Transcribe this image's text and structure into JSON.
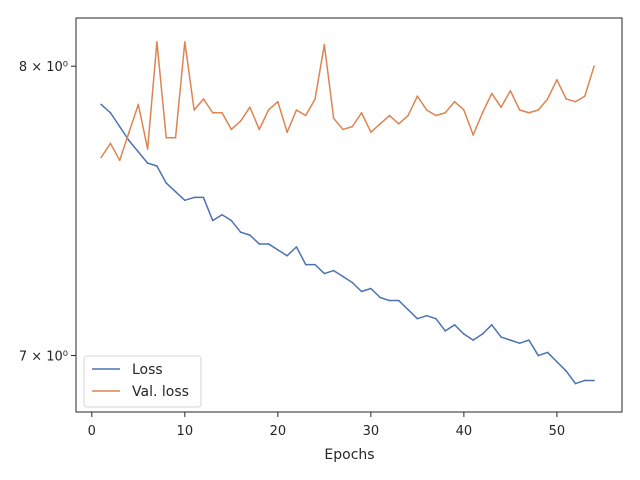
{
  "chart_data": {
    "type": "line",
    "title": "",
    "xlabel": "Epochs",
    "ylabel": "",
    "yscale": "log",
    "xlim": [
      -1.7,
      57
    ],
    "ylim": [
      6.82,
      8.18
    ],
    "xticks": [
      0,
      10,
      20,
      30,
      40,
      50
    ],
    "yticks": [
      {
        "value": 7,
        "label": "7 × 10⁰"
      },
      {
        "value": 8,
        "label": "8 × 10⁰"
      }
    ],
    "grid": false,
    "legend_position": "lower-left",
    "x": [
      1,
      2,
      3,
      4,
      5,
      6,
      7,
      8,
      9,
      10,
      11,
      12,
      13,
      14,
      15,
      16,
      17,
      18,
      19,
      20,
      21,
      22,
      23,
      24,
      25,
      26,
      27,
      28,
      29,
      30,
      31,
      32,
      33,
      34,
      35,
      36,
      37,
      38,
      39,
      40,
      41,
      42,
      43,
      44,
      45,
      46,
      47,
      48,
      49,
      50,
      51,
      52,
      53,
      54
    ],
    "series": [
      {
        "name": "Loss",
        "color": "#4c72b0",
        "values": [
          7.86,
          7.83,
          7.78,
          7.73,
          7.69,
          7.65,
          7.64,
          7.58,
          7.55,
          7.52,
          7.53,
          7.53,
          7.45,
          7.47,
          7.45,
          7.41,
          7.4,
          7.37,
          7.37,
          7.35,
          7.33,
          7.36,
          7.3,
          7.3,
          7.27,
          7.28,
          7.26,
          7.24,
          7.21,
          7.22,
          7.19,
          7.18,
          7.18,
          7.15,
          7.12,
          7.13,
          7.12,
          7.08,
          7.1,
          7.07,
          7.05,
          7.07,
          7.1,
          7.06,
          7.05,
          7.04,
          7.05,
          7.0,
          7.01,
          6.98,
          6.95,
          6.91,
          6.92,
          6.92
        ]
      },
      {
        "name": "Val. loss",
        "color": "#dd8452",
        "values": [
          7.67,
          7.72,
          7.66,
          7.76,
          7.86,
          7.7,
          8.09,
          7.74,
          7.74,
          8.09,
          7.84,
          7.88,
          7.83,
          7.83,
          7.77,
          7.8,
          7.85,
          7.77,
          7.84,
          7.87,
          7.76,
          7.84,
          7.82,
          7.88,
          8.08,
          7.81,
          7.77,
          7.78,
          7.83,
          7.76,
          7.79,
          7.82,
          7.79,
          7.82,
          7.89,
          7.84,
          7.82,
          7.83,
          7.87,
          7.84,
          7.75,
          7.83,
          7.9,
          7.85,
          7.91,
          7.84,
          7.83,
          7.84,
          7.88,
          7.95,
          7.88,
          7.87,
          7.89,
          8.0
        ]
      }
    ]
  }
}
